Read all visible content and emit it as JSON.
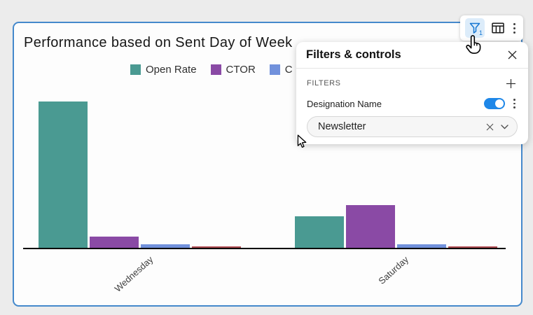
{
  "page": {
    "background_color": "#ececec"
  },
  "card": {
    "border_color": "#4589cc",
    "title": "Performance based on Sent Day of Week"
  },
  "legend": {
    "items": [
      {
        "label": "Open Rate",
        "color": "#4a9a92",
        "truncated_by_panel": false
      },
      {
        "label": "CTOR",
        "color": "#8a4aa5",
        "truncated_by_panel": false
      },
      {
        "label": "C",
        "color": "#7191dc",
        "truncated_by_panel": true
      }
    ]
  },
  "chart_data": {
    "type": "bar",
    "title": "Performance based on Sent Day of Week",
    "categories": [
      "Wednesday",
      "Saturday"
    ],
    "series": [
      {
        "name": "Open Rate",
        "color": "#4a9a92",
        "values": [
          42,
          9.2
        ]
      },
      {
        "name": "CTOR",
        "color": "#8a4aa5",
        "values": [
          3.4,
          12.4
        ]
      },
      {
        "name": "C",
        "color": "#7191dc",
        "values": [
          1.1,
          1.1
        ],
        "legend_truncated": true
      },
      {
        "name": "",
        "color": "#ad4a50",
        "values": [
          0.6,
          0.5
        ],
        "legend_hidden_by_panel": true
      }
    ],
    "xlabel": "",
    "ylabel": "",
    "value_axis_labels_visible": false,
    "values_are_estimates_relative": true,
    "grid": false,
    "legend_position": "top"
  },
  "toolbar": {
    "filter_button": {
      "icon": "filter-funnel-icon",
      "badge": "1",
      "active": true,
      "accent": "#1677d2"
    },
    "table_button": {
      "icon": "data-table-icon"
    },
    "menu_button": {
      "icon": "kebab-menu-icon"
    }
  },
  "filters_panel": {
    "title": "Filters & controls",
    "close_icon": "close-icon",
    "section_label": "FILTERS",
    "add_icon": "plus-icon",
    "filter": {
      "name": "Designation Name",
      "toggle_on": true,
      "toggle_color": "#1e87e8",
      "menu_icon": "kebab-menu-icon",
      "value": "Newsletter",
      "clear_icon": "clear-x-icon",
      "dropdown_icon": "chevron-down-icon"
    }
  },
  "cursors": {
    "hand_cursor": "over-filter-button",
    "arrow_cursor": "near-panel-bottom-left"
  }
}
